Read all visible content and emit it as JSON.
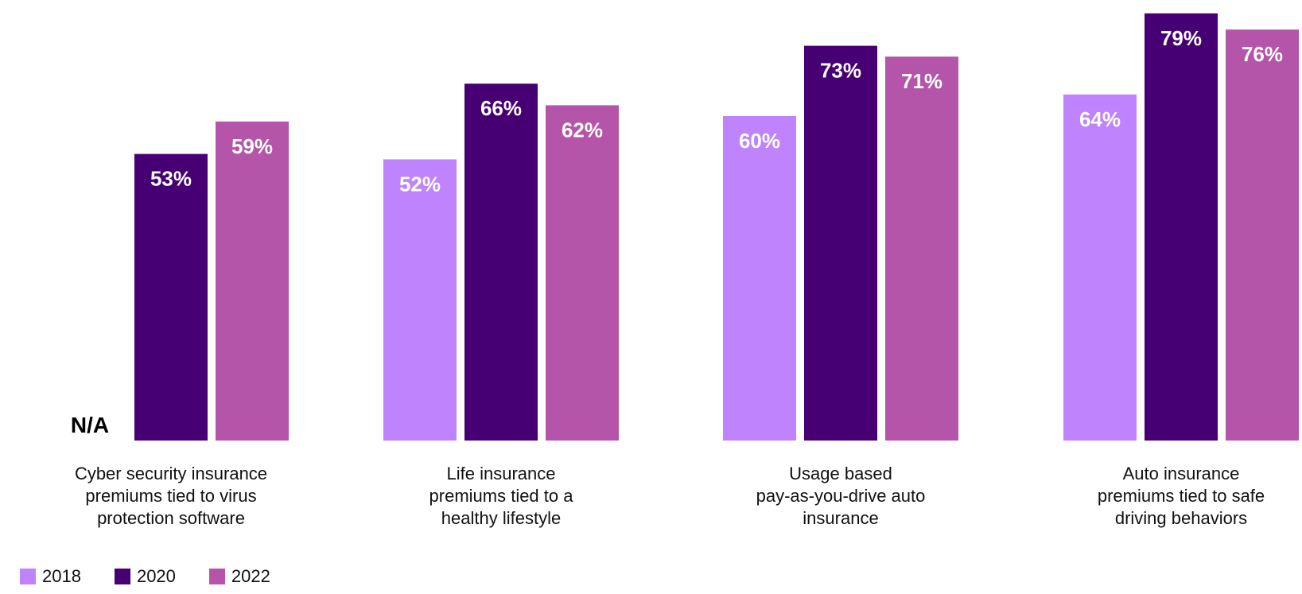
{
  "chart_data": {
    "type": "bar",
    "title": "",
    "xlabel": "",
    "ylabel": "",
    "ylim": [
      0,
      80
    ],
    "grid": false,
    "legend": "bottom-left",
    "categories": [
      "Cyber security insurance premiums tied to virus protection software",
      "Life insurance premiums tied to a healthy lifestyle",
      "Usage based pay-as-you-drive auto insurance",
      "Auto insurance premiums tied to safe driving behaviors"
    ],
    "category_lines": [
      [
        "Cyber security insurance",
        "premiums tied to virus",
        "protection software"
      ],
      [
        "Life insurance",
        "premiums tied to a",
        "healthy lifestyle"
      ],
      [
        "Usage based",
        "pay-as-you-drive auto",
        "insurance"
      ],
      [
        "Auto insurance",
        "premiums tied to safe",
        "driving behaviors"
      ]
    ],
    "series": [
      {
        "name": "2018",
        "color": "#bf84fd",
        "values": [
          null,
          52,
          60,
          64
        ],
        "labels": [
          "N/A",
          "52%",
          "60%",
          "64%"
        ]
      },
      {
        "name": "2020",
        "color": "#460073",
        "values": [
          53,
          66,
          73,
          79
        ],
        "labels": [
          "53%",
          "66%",
          "73%",
          "79%"
        ]
      },
      {
        "name": "2022",
        "color": "#b455aa",
        "values": [
          59,
          62,
          71,
          76
        ],
        "labels": [
          "59%",
          "62%",
          "71%",
          "76%"
        ]
      }
    ]
  }
}
